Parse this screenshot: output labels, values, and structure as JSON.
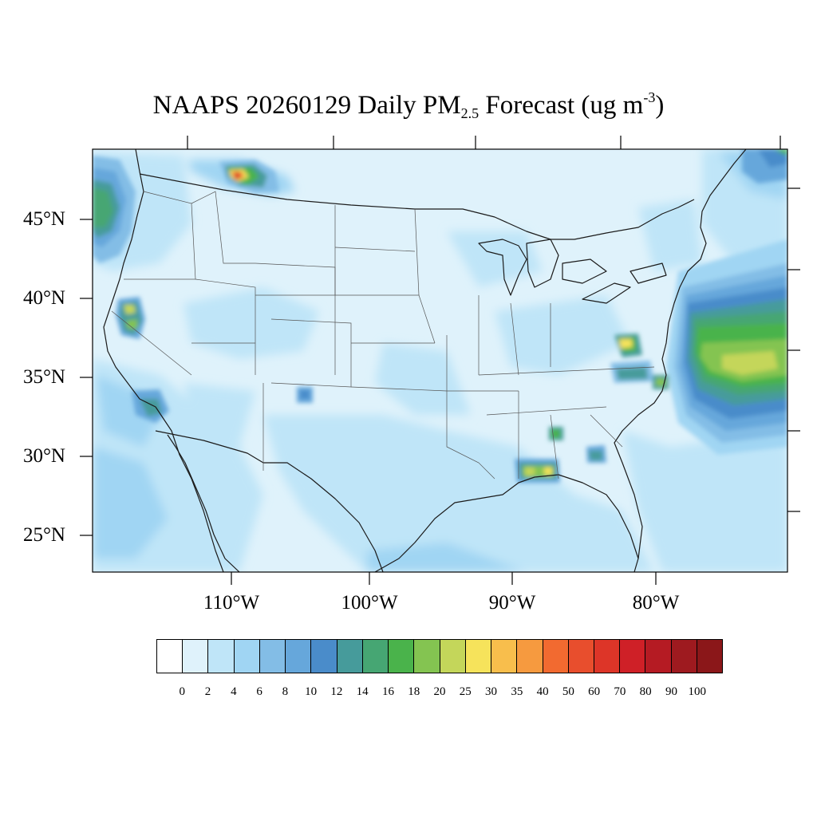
{
  "title": {
    "prefix": "NAAPS 20260129 Daily PM",
    "subscript": "2.5",
    "middle": " Forecast (ug m",
    "superscript": "-3",
    "suffix": ")"
  },
  "map": {
    "region": "Continental United States",
    "projection": "Lambert Conformal",
    "background_color": "#dff2fb",
    "lat_labels": [
      "45°N",
      "40°N",
      "35°N",
      "30°N",
      "25°N"
    ],
    "lon_labels": [
      "110°W",
      "100°W",
      "90°W",
      "80°W"
    ],
    "hotspots": [
      {
        "name": "Northern Idaho / Montana smoke plume",
        "level": 40
      },
      {
        "name": "Central California",
        "level": 25
      },
      {
        "name": "Southern California",
        "level": 12
      },
      {
        "name": "Northern New Mexico",
        "level": 12
      },
      {
        "name": "Virginia",
        "level": 30
      },
      {
        "name": "North Carolina",
        "level": 16
      },
      {
        "name": "Alabama",
        "level": 14
      },
      {
        "name": "Georgia",
        "level": 12
      },
      {
        "name": "Gulf Coast (Mississippi / Alabama)",
        "level": 30
      },
      {
        "name": "Atlantic offshore plume",
        "level": 25
      },
      {
        "name": "Pacific Northwest coast",
        "level": 14
      }
    ]
  },
  "colorbar": {
    "labels": [
      "0",
      "2",
      "4",
      "6",
      "8",
      "10",
      "12",
      "14",
      "16",
      "18",
      "20",
      "25",
      "30",
      "35",
      "40",
      "50",
      "60",
      "70",
      "80",
      "90",
      "100"
    ],
    "colors": [
      "#ffffff",
      "#dff2fb",
      "#bfe5f8",
      "#a0d5f3",
      "#83bde6",
      "#66a7db",
      "#4a8cca",
      "#469b9b",
      "#46a673",
      "#4ab34b",
      "#84c451",
      "#c4d65a",
      "#f6e35b",
      "#f8be4c",
      "#f69a3f",
      "#f26a30",
      "#e84e2d",
      "#dd3528",
      "#cf2027",
      "#b51b23",
      "#9e1a1f",
      "#8b1719"
    ]
  }
}
